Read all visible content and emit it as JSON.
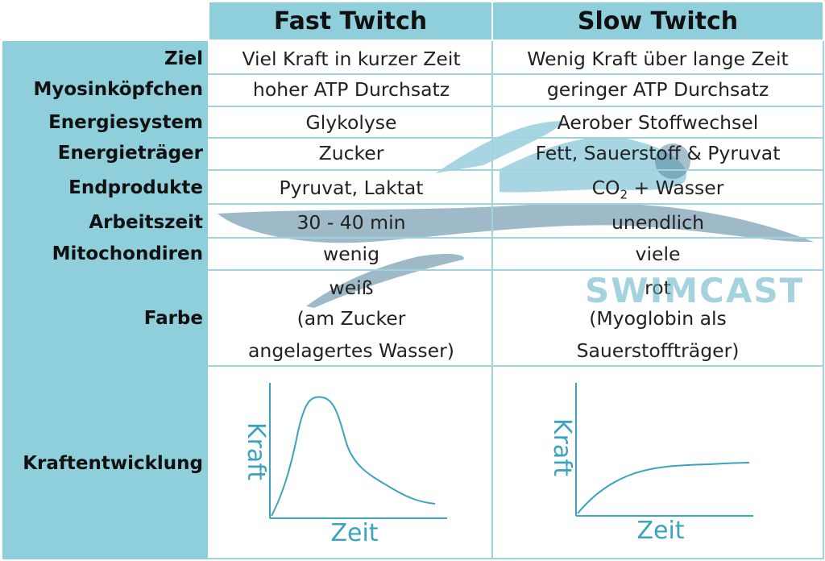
{
  "columns": {
    "fast": "Fast Twitch",
    "slow": "Slow Twitch"
  },
  "rows": [
    {
      "label": "Ziel",
      "fast": "Viel Kraft in kurzer Zeit",
      "slow": "Wenig Kraft über lange Zeit"
    },
    {
      "label": "Myosinköpfchen",
      "fast": "hoher ATP Durchsatz",
      "slow": "geringer ATP Durchsatz"
    },
    {
      "label": "Energiesystem",
      "fast": "Glykolyse",
      "slow": "Aerober Stoffwechsel"
    },
    {
      "label": "Energieträger",
      "fast": "Zucker",
      "slow": "Fett, Sauerstoff & Pyruvat"
    },
    {
      "label": "Endprodukte",
      "fast": "Pyruvat, Laktat",
      "slow_main": "CO",
      "slow_sub": "2",
      "slow_rest": " + Wasser"
    },
    {
      "label": "Arbeitszeit",
      "fast": "30 - 40 min",
      "slow": "unendlich"
    },
    {
      "label": "Mitochondiren",
      "fast": "wenig",
      "slow": "viele"
    },
    {
      "label": "Farbe",
      "fast_lines": [
        "weiß",
        "(am Zucker",
        "angelagertes Wasser)"
      ],
      "slow_lines": [
        "rot",
        "(Myoglobin als",
        "Sauerstoffträger)"
      ]
    },
    {
      "label": "Kraftentwicklung"
    }
  ],
  "graphs": {
    "fast": {
      "ylabel": "Kraft",
      "xlabel": "Zeit"
    },
    "slow": {
      "ylabel": "Kraft",
      "xlabel": "Zeit"
    }
  },
  "watermark": "SWIMCAST",
  "colors": {
    "header": "#8fcfdc",
    "curve": "#3aa3bd",
    "swimmer": "#4f8aa6",
    "swimmer_light": "#5fb3c9"
  }
}
